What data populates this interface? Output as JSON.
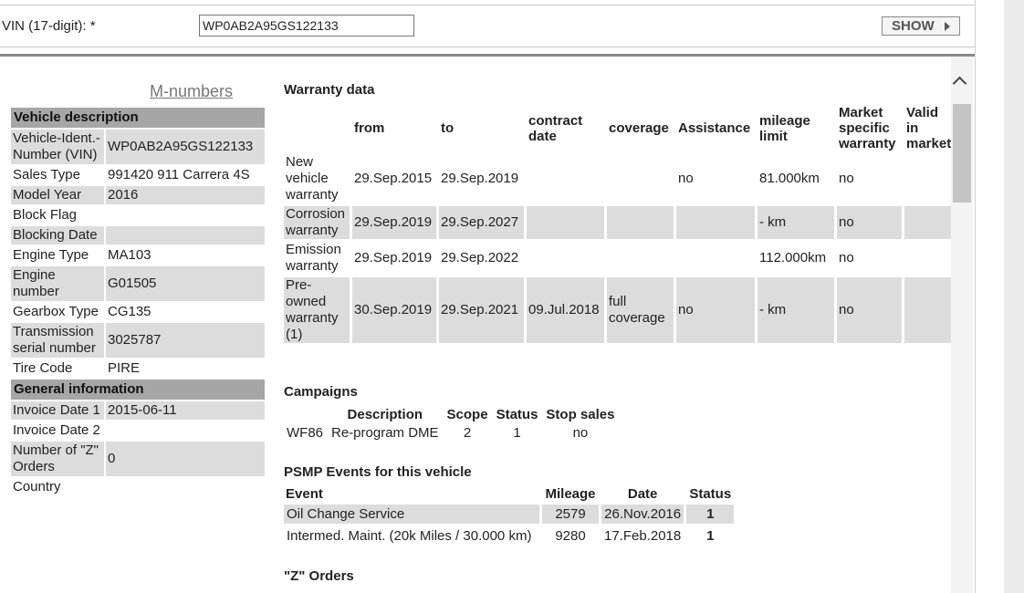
{
  "vin_form": {
    "label": "VIN (17-digit): *",
    "value": "WP0AB2A95GS122133",
    "show_button": "SHOW"
  },
  "m_numbers_link": "M-numbers",
  "vehicle_description": {
    "title": "Vehicle description",
    "rows": [
      {
        "key": "Vehicle-Ident.-Number (VIN)",
        "value": "WP0AB2A95GS122133"
      },
      {
        "key": "Sales Type",
        "value": "991420 911 Carrera 4S"
      },
      {
        "key": "Model Year",
        "value": "2016"
      },
      {
        "key": "Block Flag",
        "value": ""
      },
      {
        "key": "Blocking Date",
        "value": ""
      },
      {
        "key": "Engine Type",
        "value": "MA103"
      },
      {
        "key": "Engine number",
        "value": "G01505"
      },
      {
        "key": "Gearbox Type",
        "value": "CG135"
      },
      {
        "key": "Transmission serial number",
        "value": "3025787"
      },
      {
        "key": "Tire Code",
        "value": "PIRE"
      }
    ]
  },
  "general_information": {
    "title": "General information",
    "rows": [
      {
        "key": "Invoice Date 1",
        "value": "2015-06-11"
      },
      {
        "key": "Invoice Date 2",
        "value": ""
      },
      {
        "key": "Number of \"Z\" Orders",
        "value": "0"
      },
      {
        "key": "Country",
        "value": ""
      }
    ]
  },
  "warranty": {
    "title": "Warranty data",
    "headers": [
      "",
      "from",
      "to",
      "contract date",
      "coverage",
      "Assistance",
      "mileage limit",
      "Market specific warranty",
      "Valid in market"
    ],
    "rows": [
      [
        "New vehicle warranty",
        "29.Sep.2015",
        "29.Sep.2019",
        "",
        "",
        "no",
        "81.000km",
        "no",
        ""
      ],
      [
        "Corrosion warranty",
        "29.Sep.2019",
        "29.Sep.2027",
        "",
        "",
        "",
        "- km",
        "no",
        ""
      ],
      [
        "Emission warranty",
        "29.Sep.2019",
        "29.Sep.2022",
        "",
        "",
        "",
        "112.000km",
        "no",
        ""
      ],
      [
        "Pre-owned warranty (1)",
        "30.Sep.2019",
        "29.Sep.2021",
        "09.Jul.2018",
        "full coverage",
        "no",
        "- km",
        "no",
        ""
      ]
    ]
  },
  "campaigns": {
    "title": "Campaigns",
    "headers": [
      "",
      "Description",
      "Scope",
      "Status",
      "Stop sales"
    ],
    "rows": [
      [
        "WF86",
        "Re-program DME",
        "2",
        "1",
        "no"
      ]
    ]
  },
  "psmp": {
    "title": "PSMP Events for this vehicle",
    "headers": [
      "Event",
      "Mileage",
      "Date",
      "Status"
    ],
    "rows": [
      [
        "Oil Change Service",
        "2579",
        "26.Nov.2016",
        "1"
      ],
      [
        "Intermed. Maint. (20k Miles / 30.000 km)",
        "9280",
        "17.Feb.2018",
        "1"
      ]
    ]
  },
  "z_orders": {
    "title": "\"Z\" Orders"
  }
}
